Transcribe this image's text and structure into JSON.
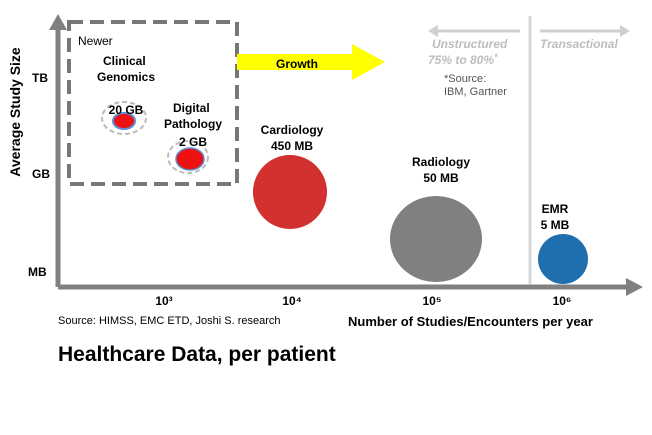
{
  "chart_data": {
    "type": "scatter",
    "title": "Healthcare Data, per patient",
    "xlabel": "Number of Studies/Encounters per year",
    "ylabel": "Average Study Size",
    "x_ticks": [
      {
        "label": "10³",
        "value": 1000
      },
      {
        "label": "10⁴",
        "value": 10000
      },
      {
        "label": "10⁵",
        "value": 100000
      },
      {
        "label": "10⁶",
        "value": 1000000
      }
    ],
    "y_ticks": [
      "TB",
      "GB",
      "MB"
    ],
    "x_scale": "log",
    "source_note": "Source: HIMSS, EMC ETD, Joshi S. research",
    "points": [
      {
        "name_lines": [
          "Clinical",
          "Genomics"
        ],
        "size_label": "20 GB",
        "x": 1000,
        "y_level": 2.3,
        "color": "#ee1111",
        "ring": true
      },
      {
        "name_lines": [
          "Digital",
          "Pathology"
        ],
        "size_label": "2 GB",
        "x": 1900,
        "y_level": 1.9,
        "color": "#ee1111",
        "ring": true
      },
      {
        "name_lines": [
          "Cardiology"
        ],
        "size_label": "450 MB",
        "x": 10000,
        "y_level": 1.3,
        "color": "#d33030",
        "ring": false
      },
      {
        "name_lines": [
          "Radiology"
        ],
        "size_label": "50 MB",
        "x": 100000,
        "y_level": 0.6,
        "color": "#808080",
        "ring": false
      },
      {
        "name_lines": [
          "EMR"
        ],
        "size_label": "5 MB",
        "x": 1000000,
        "y_level": 0.2,
        "color": "#1f6fae",
        "ring": false
      }
    ],
    "newer_box_label": "Newer",
    "growth_label": "Growth",
    "unstructured": {
      "label": "Unstructured",
      "percent": "75% to 80%",
      "asterisk": "*"
    },
    "transactional_label": "Transactional",
    "note": {
      "line1": "*Source:",
      "line2": "IBM, Gartner"
    },
    "colors": {
      "axis": "#808080",
      "growth": "#ffff00",
      "faded": "#bdbdbd",
      "box": "#777777"
    }
  }
}
